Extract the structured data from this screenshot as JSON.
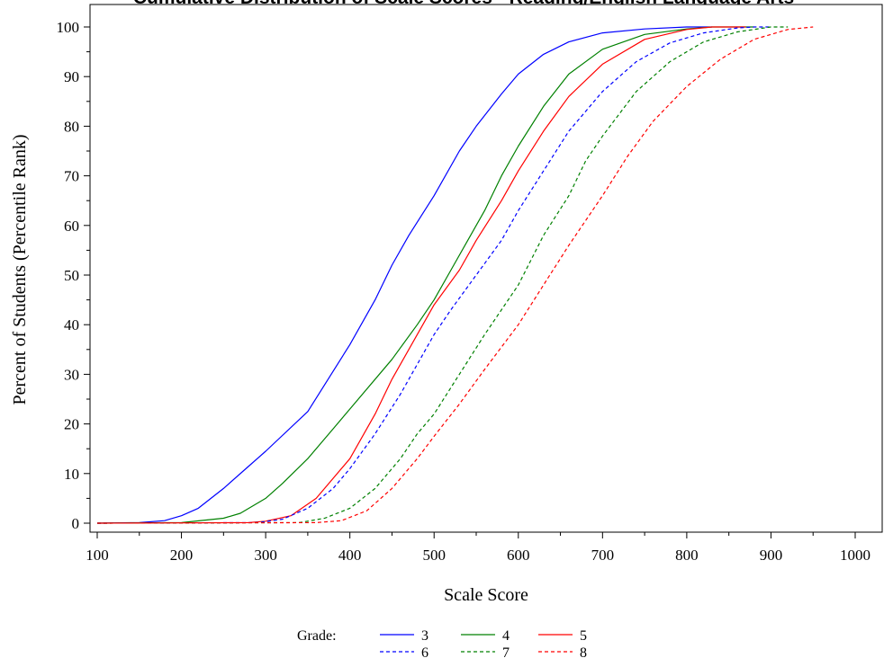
{
  "chart_data": {
    "type": "line",
    "title": "Cumulative Distribution of Scale Scores - Reading/English Language Arts",
    "xlabel": "Scale Score",
    "ylabel": "Percent of Students (Percentile Rank)",
    "xlim": [
      100,
      1000
    ],
    "ylim": [
      0,
      100
    ],
    "xticks": [
      100,
      200,
      300,
      400,
      500,
      600,
      700,
      800,
      900,
      1000
    ],
    "yticks": [
      0,
      10,
      20,
      30,
      40,
      50,
      60,
      70,
      80,
      90,
      100
    ],
    "grid": false,
    "legend": {
      "title": "Grade:",
      "placement": "bottom-center",
      "entries": [
        "3",
        "4",
        "5",
        "6",
        "7",
        "8"
      ]
    },
    "series": [
      {
        "name": "3",
        "color": "#0000ff",
        "dash": "solid",
        "points": [
          [
            100,
            0
          ],
          [
            150,
            0.1
          ],
          [
            180,
            0.5
          ],
          [
            200,
            1.5
          ],
          [
            220,
            3
          ],
          [
            250,
            7
          ],
          [
            280,
            11.5
          ],
          [
            300,
            14.5
          ],
          [
            350,
            22.5
          ],
          [
            400,
            36
          ],
          [
            430,
            45
          ],
          [
            450,
            52
          ],
          [
            470,
            58
          ],
          [
            500,
            66
          ],
          [
            530,
            75
          ],
          [
            550,
            80
          ],
          [
            580,
            86.5
          ],
          [
            600,
            90.5
          ],
          [
            630,
            94.5
          ],
          [
            660,
            97
          ],
          [
            700,
            98.8
          ],
          [
            750,
            99.6
          ],
          [
            800,
            100
          ],
          [
            830,
            100
          ]
        ]
      },
      {
        "name": "4",
        "color": "#008000",
        "dash": "solid",
        "points": [
          [
            100,
            0
          ],
          [
            200,
            0.1
          ],
          [
            250,
            1
          ],
          [
            270,
            2
          ],
          [
            300,
            5
          ],
          [
            320,
            8
          ],
          [
            350,
            13
          ],
          [
            380,
            19
          ],
          [
            400,
            23
          ],
          [
            450,
            33
          ],
          [
            480,
            40
          ],
          [
            500,
            45
          ],
          [
            520,
            51
          ],
          [
            540,
            57
          ],
          [
            560,
            63
          ],
          [
            580,
            70
          ],
          [
            600,
            76
          ],
          [
            630,
            84
          ],
          [
            660,
            90.5
          ],
          [
            700,
            95.5
          ],
          [
            750,
            98.5
          ],
          [
            800,
            99.6
          ],
          [
            830,
            100
          ],
          [
            880,
            100
          ]
        ]
      },
      {
        "name": "5",
        "color": "#ff0000",
        "dash": "solid",
        "points": [
          [
            100,
            0
          ],
          [
            280,
            0.1
          ],
          [
            300,
            0.4
          ],
          [
            330,
            1.5
          ],
          [
            360,
            5
          ],
          [
            400,
            13
          ],
          [
            430,
            22
          ],
          [
            450,
            29
          ],
          [
            480,
            38
          ],
          [
            500,
            44
          ],
          [
            530,
            51
          ],
          [
            550,
            57
          ],
          [
            580,
            65
          ],
          [
            600,
            71
          ],
          [
            630,
            79
          ],
          [
            660,
            86
          ],
          [
            700,
            92.5
          ],
          [
            750,
            97.5
          ],
          [
            800,
            99.5
          ],
          [
            830,
            100
          ],
          [
            870,
            100
          ]
        ]
      },
      {
        "name": "6",
        "color": "#0000ff",
        "dash": "dashed",
        "points": [
          [
            100,
            0
          ],
          [
            290,
            0.1
          ],
          [
            320,
            0.8
          ],
          [
            350,
            3
          ],
          [
            380,
            7
          ],
          [
            400,
            11
          ],
          [
            430,
            18
          ],
          [
            460,
            26
          ],
          [
            500,
            38
          ],
          [
            520,
            43
          ],
          [
            550,
            50
          ],
          [
            580,
            57
          ],
          [
            600,
            63
          ],
          [
            630,
            71
          ],
          [
            660,
            79
          ],
          [
            700,
            87
          ],
          [
            740,
            93
          ],
          [
            780,
            96.8
          ],
          [
            820,
            98.8
          ],
          [
            860,
            99.8
          ],
          [
            880,
            100
          ],
          [
            900,
            100
          ]
        ]
      },
      {
        "name": "7",
        "color": "#008000",
        "dash": "dashed",
        "points": [
          [
            100,
            0
          ],
          [
            340,
            0.1
          ],
          [
            370,
            1
          ],
          [
            400,
            3
          ],
          [
            430,
            7
          ],
          [
            460,
            13
          ],
          [
            480,
            18
          ],
          [
            500,
            22
          ],
          [
            530,
            30
          ],
          [
            560,
            38
          ],
          [
            600,
            48
          ],
          [
            630,
            58
          ],
          [
            660,
            66
          ],
          [
            680,
            73
          ],
          [
            700,
            78
          ],
          [
            740,
            87
          ],
          [
            780,
            93
          ],
          [
            820,
            97
          ],
          [
            860,
            99
          ],
          [
            900,
            100
          ],
          [
            920,
            100
          ]
        ]
      },
      {
        "name": "8",
        "color": "#ff0000",
        "dash": "dashed",
        "points": [
          [
            100,
            0
          ],
          [
            360,
            0.1
          ],
          [
            390,
            0.5
          ],
          [
            420,
            2.5
          ],
          [
            450,
            7
          ],
          [
            480,
            13
          ],
          [
            500,
            17.5
          ],
          [
            530,
            24
          ],
          [
            560,
            31
          ],
          [
            600,
            40
          ],
          [
            630,
            48
          ],
          [
            660,
            56
          ],
          [
            700,
            66
          ],
          [
            730,
            74
          ],
          [
            760,
            81
          ],
          [
            800,
            88
          ],
          [
            840,
            93.5
          ],
          [
            880,
            97.5
          ],
          [
            920,
            99.5
          ],
          [
            950,
            100
          ]
        ]
      }
    ]
  }
}
